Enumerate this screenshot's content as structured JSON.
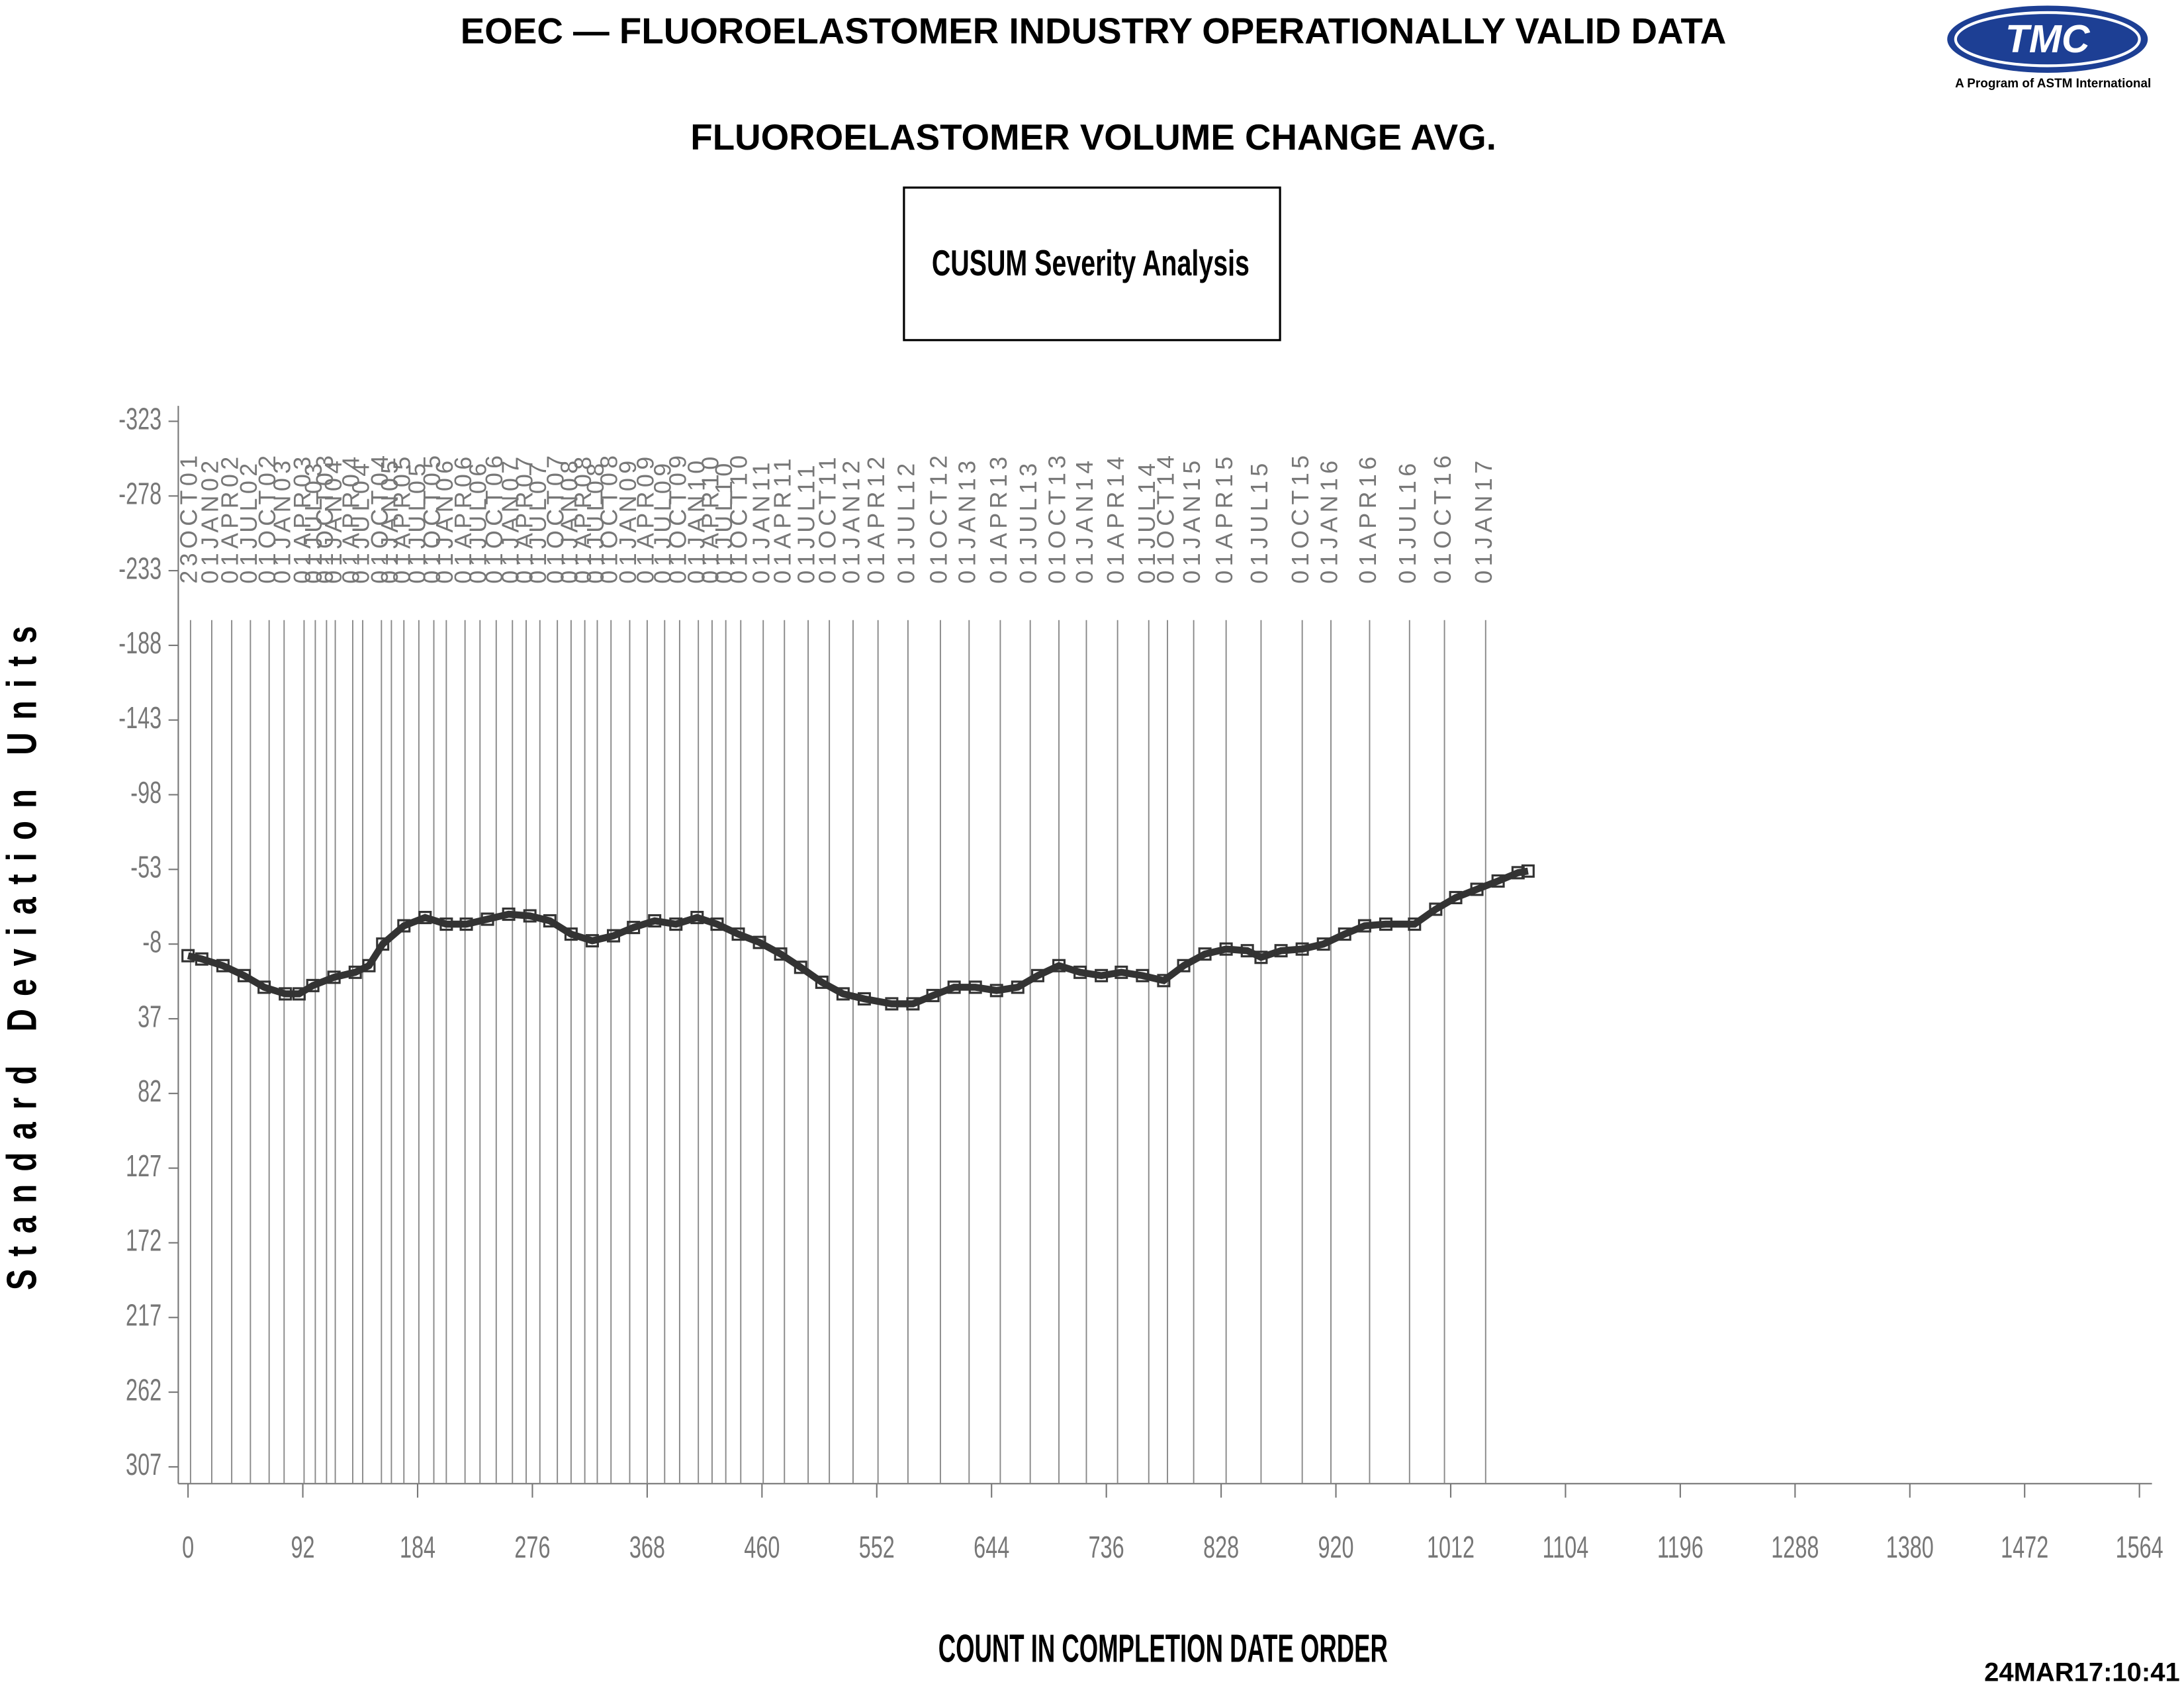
{
  "chart_data": {
    "type": "line",
    "title": "EOEC — FLUOROELASTOMER INDUSTRY OPERATIONALLY VALID DATA",
    "subtitle": "FLUOROELASTOMER VOLUME CHANGE AVG.",
    "legend_title": "CUSUM Severity Analysis",
    "x_label": "COUNT IN COMPLETION DATE ORDER",
    "y_label": "Standard Deviation Units",
    "timestamp": "24MAR17:10:41",
    "logo_text": "TMC",
    "logo_caption": "A Program of ASTM International",
    "xlim": [
      0,
      1564
    ],
    "xticks": [
      0,
      92,
      184,
      276,
      368,
      460,
      552,
      644,
      736,
      828,
      920,
      1012,
      1104,
      1196,
      1288,
      1380,
      1472,
      1564
    ],
    "ylim": [
      307,
      -323
    ],
    "yticks": [
      -323,
      -278,
      -233,
      -188,
      -143,
      -98,
      -53,
      -8,
      37,
      82,
      127,
      172,
      217,
      262,
      307
    ],
    "marker": "square",
    "series": [
      {
        "color": "#333333",
        "x": [
          0,
          11,
          28,
          45,
          61,
          78,
          89,
          100,
          117,
          134,
          145,
          156,
          173,
          190,
          207,
          223,
          240,
          257,
          274,
          290,
          307,
          324,
          341,
          357,
          374,
          391,
          408,
          424,
          441,
          458,
          475,
          491,
          508,
          525,
          542,
          564,
          581,
          597,
          614,
          631,
          648,
          665,
          681,
          698,
          715,
          732,
          748,
          765,
          782,
          798,
          815,
          832,
          849,
          860,
          876,
          893,
          910,
          927,
          943,
          960,
          983,
          1000,
          1016,
          1033,
          1050,
          1066,
          1074
        ],
        "values": [
          -1,
          1,
          5,
          11,
          18,
          22,
          22,
          17,
          12,
          9,
          5,
          -8,
          -19,
          -24,
          -20,
          -20,
          -23,
          -26,
          -25,
          -22,
          -14,
          -10,
          -13,
          -18,
          -22,
          -20,
          -24,
          -20,
          -14,
          -9,
          -2,
          6,
          15,
          22,
          25,
          28,
          28,
          23,
          18,
          18,
          20,
          18,
          11,
          5,
          9,
          11,
          9,
          11,
          14,
          5,
          -2,
          -5,
          -4,
          0,
          -4,
          -5,
          -8,
          -14,
          -19,
          -20,
          -20,
          -29,
          -36,
          -41,
          -46,
          -51,
          -52
        ]
      }
    ],
    "reference_lines": [
      {
        "value": 2,
        "label": "23OCT01"
      },
      {
        "value": 19,
        "label": "01JAN02"
      },
      {
        "value": 35,
        "label": "01APR02"
      },
      {
        "value": 50,
        "label": "01JUL02"
      },
      {
        "value": 65,
        "label": "01OCT02"
      },
      {
        "value": 77,
        "label": "01JAN03"
      },
      {
        "value": 93,
        "label": "01APR03"
      },
      {
        "value": 102,
        "label": "01JUL03"
      },
      {
        "value": 111,
        "label": "01OCT03"
      },
      {
        "value": 118,
        "label": "01JAN04"
      },
      {
        "value": 132,
        "label": "01APR04"
      },
      {
        "value": 140,
        "label": "01JUL04"
      },
      {
        "value": 155,
        "label": "01OCT04"
      },
      {
        "value": 163,
        "label": "01JAN05"
      },
      {
        "value": 173,
        "label": "01APR05"
      },
      {
        "value": 185,
        "label": "01JUL05"
      },
      {
        "value": 197,
        "label": "01OCT05"
      },
      {
        "value": 207,
        "label": "01JAN06"
      },
      {
        "value": 222,
        "label": "01APR06"
      },
      {
        "value": 234,
        "label": "01JUL06"
      },
      {
        "value": 247,
        "label": "01OCT06"
      },
      {
        "value": 260,
        "label": "01JAN07"
      },
      {
        "value": 271,
        "label": "01APR07"
      },
      {
        "value": 282,
        "label": "01JUL07"
      },
      {
        "value": 296,
        "label": "01OCT07"
      },
      {
        "value": 307,
        "label": "01JAN08"
      },
      {
        "value": 318,
        "label": "01APR08"
      },
      {
        "value": 328,
        "label": "01JUL08"
      },
      {
        "value": 339,
        "label": "01OCT08"
      },
      {
        "value": 354,
        "label": "01JAN09"
      },
      {
        "value": 368,
        "label": "01APR09"
      },
      {
        "value": 382,
        "label": "01JUL09"
      },
      {
        "value": 394,
        "label": "01OCT09"
      },
      {
        "value": 409,
        "label": "01JAN10"
      },
      {
        "value": 420,
        "label": "01APR10"
      },
      {
        "value": 431,
        "label": "01JUL10"
      },
      {
        "value": 443,
        "label": "01OCT10"
      },
      {
        "value": 461,
        "label": "01JAN11"
      },
      {
        "value": 478,
        "label": "01APR11"
      },
      {
        "value": 497,
        "label": "01JUL11"
      },
      {
        "value": 514,
        "label": "01OCT11"
      },
      {
        "value": 533,
        "label": "01JAN12"
      },
      {
        "value": 553,
        "label": "01APR12"
      },
      {
        "value": 577,
        "label": "01JUL12"
      },
      {
        "value": 603,
        "label": "01OCT12"
      },
      {
        "value": 626,
        "label": "01JAN13"
      },
      {
        "value": 651,
        "label": "01APR13"
      },
      {
        "value": 675,
        "label": "01JUL13"
      },
      {
        "value": 698,
        "label": "01OCT13"
      },
      {
        "value": 720,
        "label": "01JAN14"
      },
      {
        "value": 745,
        "label": "01APR14"
      },
      {
        "value": 770,
        "label": "01JUL14"
      },
      {
        "value": 785,
        "label": "01OCT14"
      },
      {
        "value": 806,
        "label": "01JAN15"
      },
      {
        "value": 832,
        "label": "01APR15"
      },
      {
        "value": 860,
        "label": "01JUL15"
      },
      {
        "value": 893,
        "label": "01OCT15"
      },
      {
        "value": 916,
        "label": "01JAN16"
      },
      {
        "value": 947,
        "label": "01APR16"
      },
      {
        "value": 979,
        "label": "01JUL16"
      },
      {
        "value": 1007,
        "label": "01OCT16"
      },
      {
        "value": 1040,
        "label": "01JAN17"
      }
    ]
  }
}
